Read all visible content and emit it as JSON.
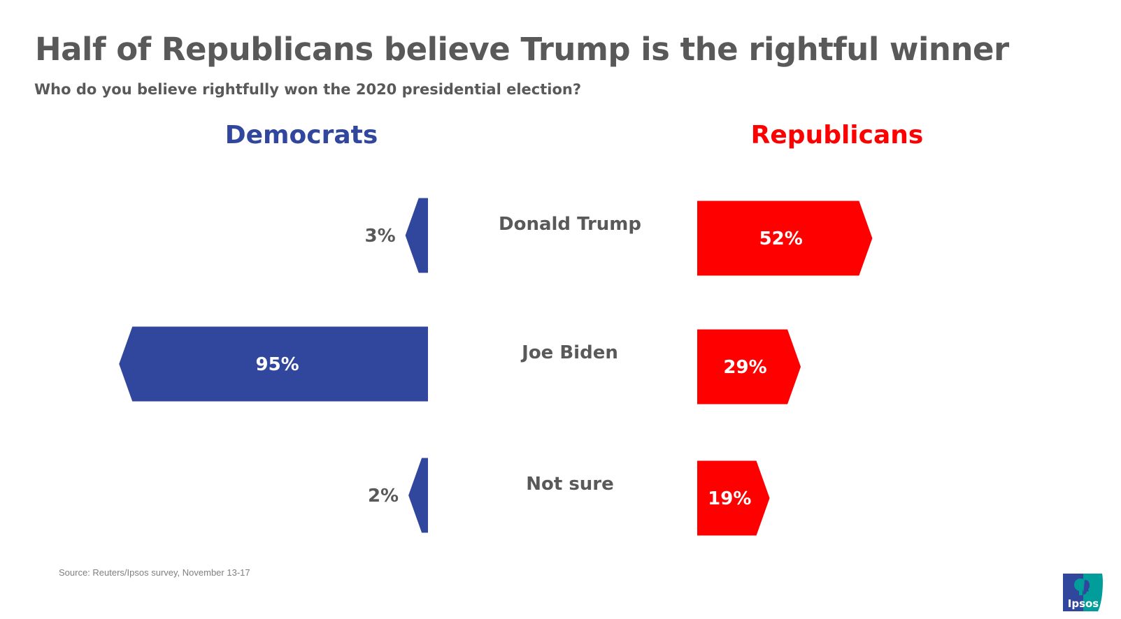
{
  "title": "Half of Republicans believe Trump is the rightful winner",
  "subtitle": "Who do you believe rightfully won the 2020 presidential election?",
  "source": "Source: Reuters/Ipsos survey, November 13-17",
  "logo": {
    "text": "Ipsos",
    "icon": "ipsos-logo-icon",
    "colors": [
      "#31479e",
      "#009d9a"
    ]
  },
  "colors": {
    "democrats": "#31479e",
    "republicans": "#ff0000",
    "text": "#595959"
  },
  "chart_data": {
    "type": "bar",
    "orientation": "horizontal-diverging",
    "title": "Half of Republicans believe Trump is the rightful winner",
    "subtitle": "Who do you believe rightfully won the 2020 presidential election?",
    "categories": [
      "Donald Trump",
      "Joe Biden",
      "Not sure"
    ],
    "series": [
      {
        "name": "Democrats",
        "color": "#31479e",
        "direction": "left",
        "values": [
          3,
          95,
          2
        ],
        "labels": [
          "3%",
          "95%",
          "2%"
        ]
      },
      {
        "name": "Republicans",
        "color": "#ff0000",
        "direction": "right",
        "values": [
          52,
          29,
          19
        ],
        "labels": [
          "52%",
          "29%",
          "19%"
        ]
      }
    ],
    "unit": "%",
    "xlim": [
      0,
      100
    ],
    "grid": false,
    "legend": "column-headers"
  }
}
